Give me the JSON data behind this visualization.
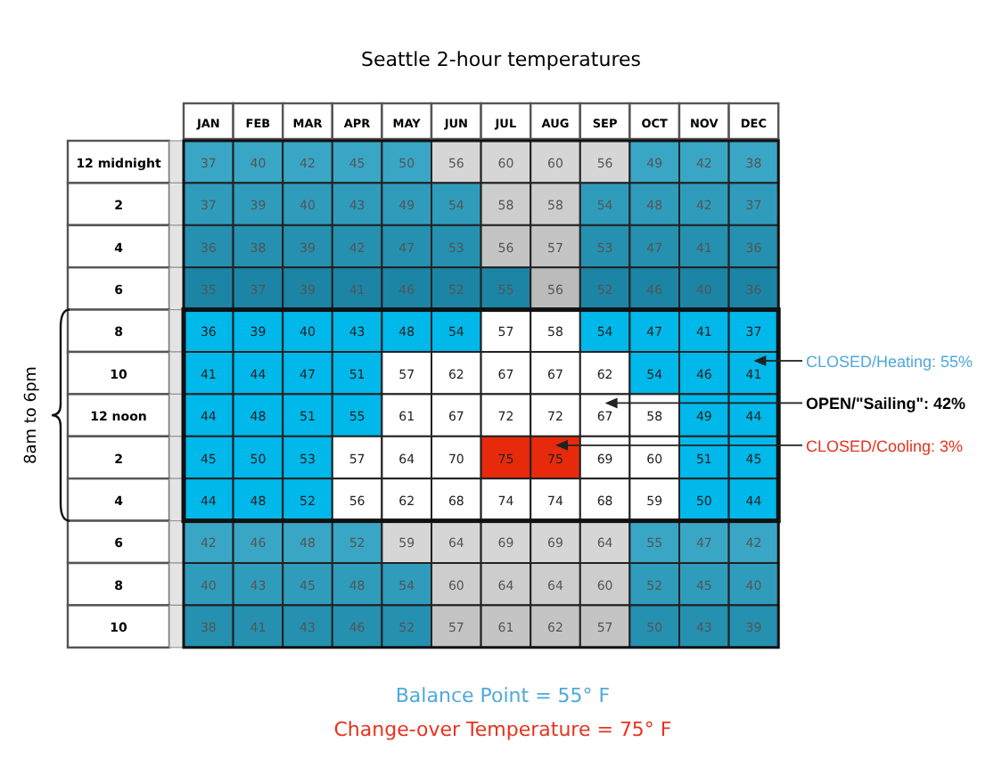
{
  "chart_data": {
    "type": "heatmap",
    "title": "Seattle 2-hour temperatures",
    "categories": [
      "JAN",
      "FEB",
      "MAR",
      "APR",
      "MAY",
      "JUN",
      "JUL",
      "AUG",
      "SEP",
      "OCT",
      "NOV",
      "DEC"
    ],
    "y_categories": [
      "12 midnight",
      "2",
      "4",
      "6",
      "8",
      "10",
      "12 noon",
      "2",
      "4",
      "6",
      "8",
      "10"
    ],
    "cells": [
      [
        37,
        40,
        42,
        45,
        50,
        56,
        60,
        60,
        56,
        49,
        42,
        38
      ],
      [
        37,
        39,
        40,
        43,
        49,
        54,
        58,
        58,
        54,
        48,
        42,
        37
      ],
      [
        36,
        38,
        39,
        42,
        47,
        53,
        56,
        57,
        53,
        47,
        41,
        36
      ],
      [
        35,
        37,
        39,
        41,
        46,
        52,
        55,
        56,
        52,
        46,
        40,
        36
      ],
      [
        36,
        39,
        40,
        43,
        48,
        54,
        57,
        58,
        54,
        47,
        41,
        37
      ],
      [
        41,
        44,
        47,
        51,
        57,
        62,
        67,
        67,
        62,
        54,
        46,
        41
      ],
      [
        44,
        48,
        51,
        55,
        61,
        67,
        72,
        72,
        67,
        58,
        49,
        44
      ],
      [
        45,
        50,
        53,
        57,
        64,
        70,
        75,
        75,
        69,
        60,
        51,
        45
      ],
      [
        44,
        48,
        52,
        56,
        62,
        68,
        74,
        74,
        68,
        59,
        50,
        44
      ],
      [
        42,
        46,
        48,
        52,
        59,
        64,
        69,
        69,
        64,
        55,
        47,
        42
      ],
      [
        40,
        43,
        45,
        48,
        54,
        60,
        64,
        64,
        60,
        52,
        45,
        40
      ],
      [
        38,
        41,
        43,
        46,
        52,
        57,
        61,
        62,
        57,
        50,
        43,
        39
      ]
    ],
    "colors": [
      [
        "#3aa6c6",
        "#3aa6c6",
        "#3aa6c6",
        "#3aa6c6",
        "#3aa6c6",
        "#d6d6d6",
        "#d6d6d6",
        "#d6d6d6",
        "#d6d6d6",
        "#3aa6c6",
        "#3aa6c6",
        "#3aa6c6"
      ],
      [
        "#2f9cbc",
        "#2f9cbc",
        "#2f9cbc",
        "#2f9cbc",
        "#2f9cbc",
        "#2f9cbc",
        "#cdcdcd",
        "#cdcdcd",
        "#2f9cbc",
        "#2f9cbc",
        "#2f9cbc",
        "#2f9cbc"
      ],
      [
        "#2590b0",
        "#2590b0",
        "#2590b0",
        "#2590b0",
        "#2590b0",
        "#2590b0",
        "#c4c4c4",
        "#c4c4c4",
        "#2590b0",
        "#2590b0",
        "#2590b0",
        "#2590b0"
      ],
      [
        "#1c85a5",
        "#1c85a5",
        "#1c85a5",
        "#1c85a5",
        "#1c85a5",
        "#1c85a5",
        "#1c85a5",
        "#bbbbbb",
        "#1c85a5",
        "#1c85a5",
        "#1c85a5",
        "#1c85a5"
      ],
      [
        "#00b8ea",
        "#00b8ea",
        "#00b8ea",
        "#00b8ea",
        "#00b8ea",
        "#00b8ea",
        "#ffffff",
        "#ffffff",
        "#00b8ea",
        "#00b8ea",
        "#00b8ea",
        "#00b8ea"
      ],
      [
        "#00b8ea",
        "#00b8ea",
        "#00b8ea",
        "#00b8ea",
        "#ffffff",
        "#ffffff",
        "#ffffff",
        "#ffffff",
        "#ffffff",
        "#00b8ea",
        "#00b8ea",
        "#00b8ea"
      ],
      [
        "#00b8ea",
        "#00b8ea",
        "#00b8ea",
        "#00b8ea",
        "#ffffff",
        "#ffffff",
        "#ffffff",
        "#ffffff",
        "#ffffff",
        "#ffffff",
        "#00b8ea",
        "#00b8ea"
      ],
      [
        "#00b8ea",
        "#00b8ea",
        "#00b8ea",
        "#ffffff",
        "#ffffff",
        "#ffffff",
        "#e82a0c",
        "#e82a0c",
        "#ffffff",
        "#ffffff",
        "#00b8ea",
        "#00b8ea"
      ],
      [
        "#00b8ea",
        "#00b8ea",
        "#00b8ea",
        "#ffffff",
        "#ffffff",
        "#ffffff",
        "#ffffff",
        "#ffffff",
        "#ffffff",
        "#ffffff",
        "#00b8ea",
        "#00b8ea"
      ],
      [
        "#3aa6c6",
        "#3aa6c6",
        "#3aa6c6",
        "#3aa6c6",
        "#d6d6d6",
        "#d6d6d6",
        "#d6d6d6",
        "#d6d6d6",
        "#d6d6d6",
        "#3aa6c6",
        "#3aa6c6",
        "#3aa6c6"
      ],
      [
        "#2f9cbc",
        "#2f9cbc",
        "#2f9cbc",
        "#2f9cbc",
        "#2f9cbc",
        "#cdcdcd",
        "#cdcdcd",
        "#cdcdcd",
        "#cdcdcd",
        "#2f9cbc",
        "#2f9cbc",
        "#2f9cbc"
      ],
      [
        "#2590b0",
        "#2590b0",
        "#2590b0",
        "#2590b0",
        "#2590b0",
        "#c4c4c4",
        "#c4c4c4",
        "#c4c4c4",
        "#c4c4c4",
        "#2590b0",
        "#2590b0",
        "#2590b0"
      ]
    ],
    "ylabel": "8am to 6pm",
    "data_labels": true,
    "annotations": [
      "CLOSED/Heating: 55%",
      "OPEN/\"Sailing\": 42%",
      "CLOSED/Cooling: 3%",
      "Balance Point = 55° F",
      "Change-over Temperature = 75° F"
    ]
  }
}
